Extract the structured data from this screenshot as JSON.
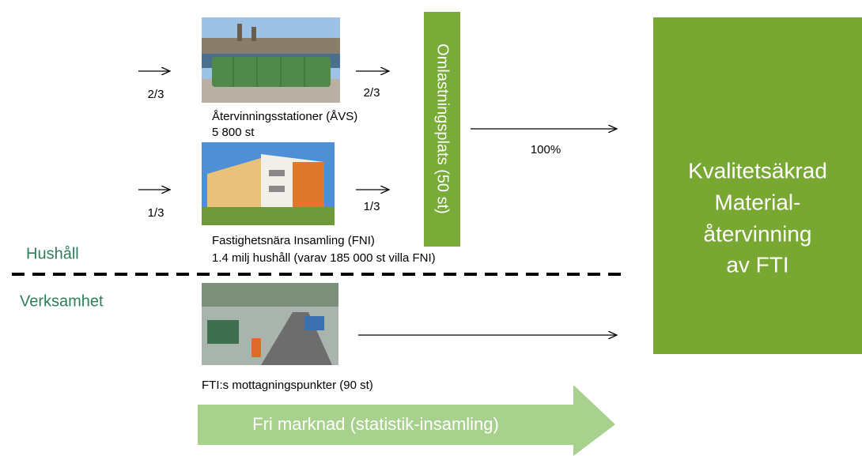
{
  "flows": {
    "avs_in": "2/3",
    "avs_out": "2/3",
    "fni_in": "1/3",
    "fni_out": "1/3",
    "to_target": "100%"
  },
  "avs": {
    "name": "Återvinningsstationer (ÅVS)",
    "count": "5 800 st"
  },
  "fni": {
    "name": "Fastighetsnära Insamling (FNI)",
    "count": "1.4 milj hushåll (varav 185 000 st villa FNI)"
  },
  "sections": {
    "upper": "Hushåll",
    "lower": "Verksamhet"
  },
  "hub": "Omlastningsplats (50 st)",
  "target": {
    "lines": [
      "Kvalitetsäkrad",
      "Material-",
      "återvinning",
      "av FTI"
    ]
  },
  "reception": "FTI:s mottagningspunkter (90 st)",
  "free_market": "Fri marknad (statistik-insamling)"
}
